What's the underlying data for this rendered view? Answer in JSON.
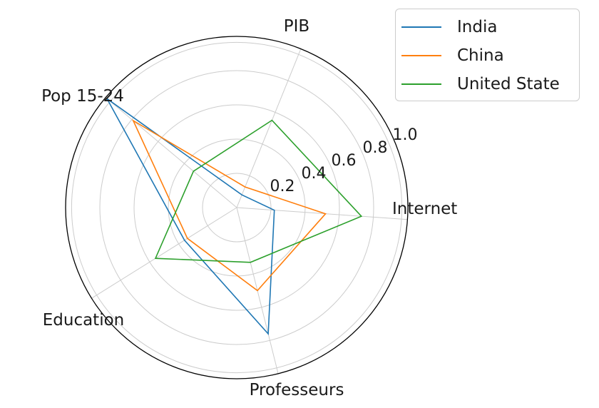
{
  "chart_data": {
    "type": "radar",
    "axes": [
      "Internet",
      "PIB",
      "Pop 15-24",
      "Education",
      "Professeurs"
    ],
    "rlim": [
      0,
      1.0
    ],
    "radial_ticks": [
      0.2,
      0.4,
      0.6,
      0.8,
      1.0
    ],
    "radial_tick_labels": [
      "0.2",
      "0.4",
      "0.6",
      "0.8",
      "1.0"
    ],
    "grid": true,
    "legend_position": "top-right",
    "series": [
      {
        "name": "India",
        "color": "#1f77b4",
        "values": [
          0.22,
          0.08,
          0.99,
          0.36,
          0.76
        ]
      },
      {
        "name": "China",
        "color": "#ff7f0e",
        "values": [
          0.52,
          0.13,
          0.79,
          0.34,
          0.5
        ]
      },
      {
        "name": "United State",
        "color": "#2ca02c",
        "values": [
          0.73,
          0.55,
          0.33,
          0.56,
          0.33
        ]
      }
    ]
  }
}
